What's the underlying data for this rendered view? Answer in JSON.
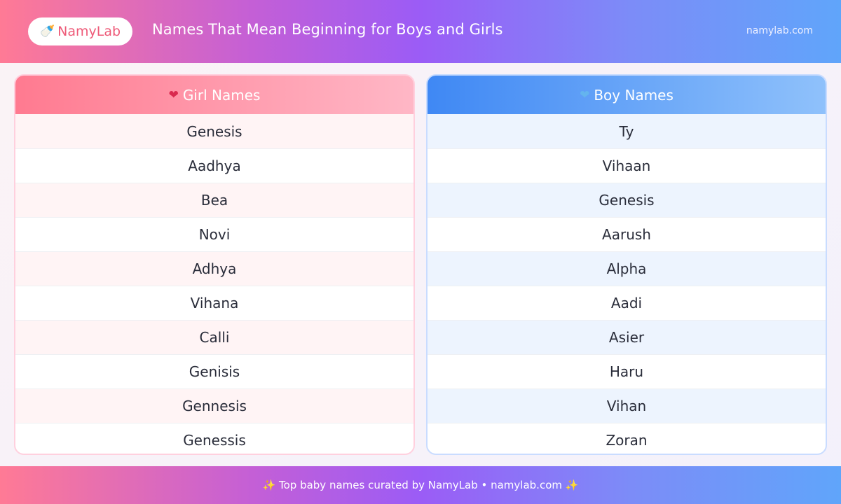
{
  "header": {
    "logo_icon": "🍼",
    "logo_text": "NamyLab",
    "title": "Names That Mean Beginning for Boys and Girls",
    "site": "namylab.com"
  },
  "girls": {
    "icon": "❤",
    "title": "Girl Names",
    "names": [
      "Genesis",
      "Aadhya",
      "Bea",
      "Novi",
      "Adhya",
      "Vihana",
      "Calli",
      "Genisis",
      "Gennesis",
      "Genessis"
    ]
  },
  "boys": {
    "icon": "❤",
    "title": "Boy Names",
    "names": [
      "Ty",
      "Vihaan",
      "Genesis",
      "Aarush",
      "Alpha",
      "Aadi",
      "Asier",
      "Haru",
      "Vihan",
      "Zoran"
    ]
  },
  "footer": {
    "text": "✨ Top baby names curated by NamyLab • namylab.com ✨"
  },
  "colors": {
    "girl_accent": "#ff7a90",
    "boy_accent": "#3f88f4",
    "logo_text": "#ee5a78"
  }
}
